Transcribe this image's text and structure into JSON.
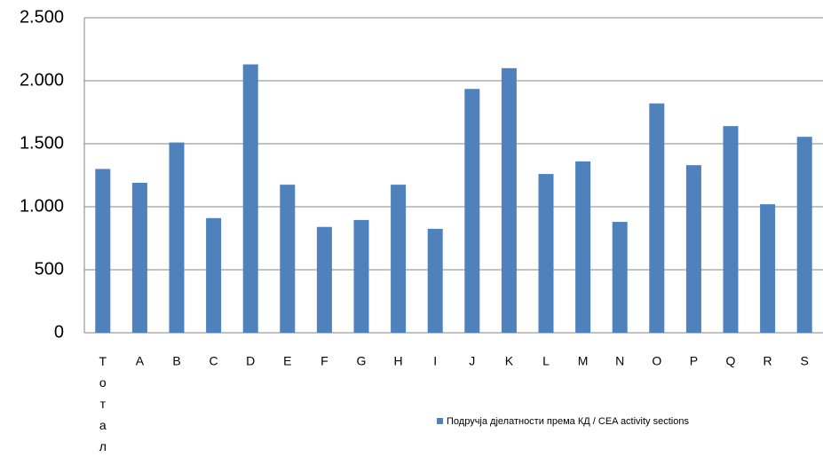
{
  "chart_data": {
    "type": "bar",
    "categories": [
      "Тотал",
      "A",
      "B",
      "C",
      "D",
      "E",
      "F",
      "G",
      "H",
      "I",
      "J",
      "K",
      "L",
      "M",
      "N",
      "O",
      "P",
      "Q",
      "R",
      "S"
    ],
    "series": [
      {
        "name": "Подручја дјелатности према КД / CEA activity sections",
        "color": "#4f81bd",
        "values": [
          1300,
          1190,
          1510,
          910,
          2130,
          1175,
          840,
          895,
          1175,
          825,
          1935,
          2100,
          1260,
          1360,
          880,
          1820,
          1330,
          1640,
          1020,
          1555
        ]
      }
    ],
    "ylim": [
      0,
      2500
    ],
    "yticks": [
      0,
      500,
      {
        "value": 1000,
        "label": "1.000"
      },
      {
        "value": 1500,
        "label": "1.500"
      },
      {
        "value": 2000,
        "label": "2.000"
      },
      {
        "value": 2500,
        "label": "2.500"
      }
    ],
    "grid": true
  }
}
